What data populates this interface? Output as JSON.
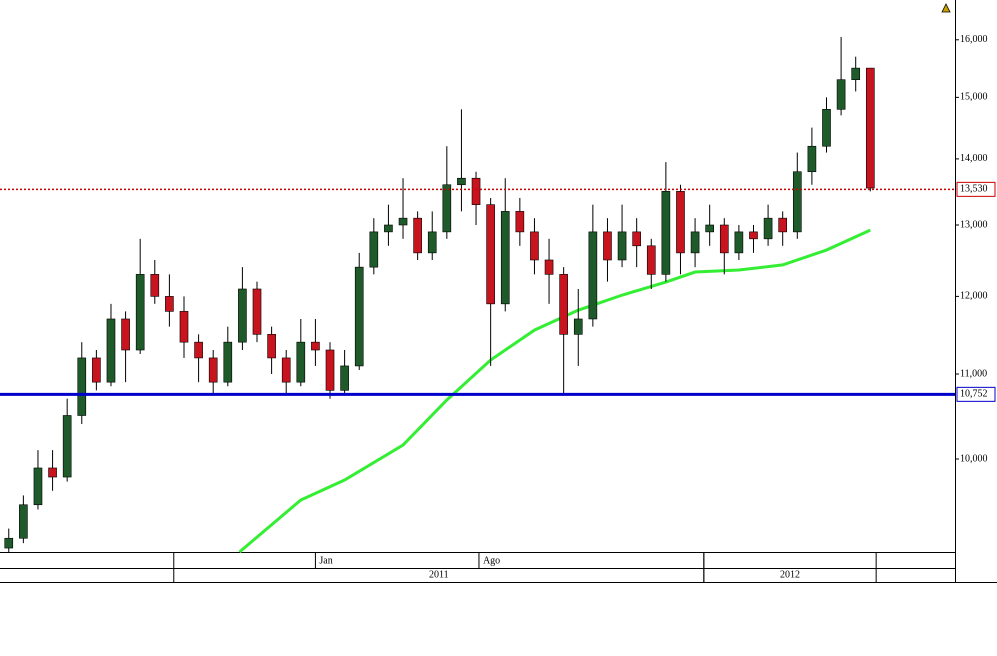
{
  "chart_data": {
    "type": "candlestick",
    "log_scale": true,
    "up_color": "#1f5a2a",
    "down_color": "#c8141e",
    "open": [
      9050,
      9150,
      9500,
      9900,
      9800,
      10500,
      11200,
      10900,
      11700,
      11300,
      12300,
      12000,
      11800,
      11400,
      11200,
      10900,
      11400,
      12100,
      11500,
      11200,
      10900,
      11400,
      11300,
      10800,
      11100,
      12400,
      12900,
      13000,
      13100,
      12600,
      12900,
      13600,
      13700,
      13300,
      11900,
      13200,
      12900,
      12500,
      12300,
      11500,
      11700,
      12900,
      12500,
      12900,
      12700,
      12300,
      13500,
      12600,
      12900,
      13000,
      12600,
      12900,
      12800,
      13100,
      12900,
      13800,
      14200,
      14800,
      15300,
      15500
    ],
    "high": [
      9250,
      9600,
      10100,
      10100,
      10700,
      11400,
      11300,
      11900,
      11800,
      12800,
      12500,
      12300,
      12000,
      11500,
      11300,
      11600,
      12400,
      12200,
      11600,
      11300,
      11700,
      11700,
      11400,
      11300,
      12600,
      13100,
      13300,
      13700,
      13200,
      13200,
      14200,
      14800,
      13800,
      13400,
      13700,
      13400,
      13100,
      12800,
      12400,
      12100,
      13300,
      13100,
      13300,
      13100,
      12800,
      13950,
      13600,
      13100,
      13300,
      13100,
      13000,
      13000,
      13300,
      13200,
      14100,
      14500,
      15000,
      16050,
      15700,
      15500
    ],
    "low": [
      9000,
      9100,
      9450,
      9650,
      9750,
      10400,
      10800,
      10850,
      10900,
      11250,
      11900,
      11600,
      11200,
      10900,
      10750,
      10850,
      11300,
      11400,
      11000,
      10750,
      10850,
      11100,
      10700,
      10750,
      11050,
      12300,
      12700,
      12800,
      12500,
      12500,
      12800,
      13200,
      13000,
      11100,
      11800,
      12700,
      12300,
      11900,
      10750,
      11100,
      11600,
      12200,
      12400,
      12400,
      12100,
      12200,
      12300,
      12400,
      12700,
      12300,
      12500,
      12600,
      12700,
      12700,
      12800,
      13600,
      14100,
      14700,
      15100,
      13500
    ],
    "close": [
      9150,
      9500,
      9900,
      9800,
      10500,
      11200,
      10900,
      11700,
      11300,
      12300,
      12000,
      11800,
      11400,
      11200,
      10900,
      11400,
      12100,
      11500,
      11200,
      10900,
      11400,
      11300,
      10800,
      11100,
      12400,
      12900,
      13000,
      13100,
      12600,
      12900,
      13600,
      13700,
      13300,
      11900,
      13200,
      12900,
      12500,
      12300,
      11500,
      11700,
      12900,
      12500,
      12900,
      12700,
      12300,
      13500,
      12600,
      12900,
      13000,
      12600,
      12900,
      12800,
      13100,
      12900,
      13800,
      14200,
      14800,
      15300,
      15500,
      13550
    ],
    "xlim": [
      -0.6,
      64.8
    ],
    "ylim": [
      9010,
      16730
    ],
    "yticks": [
      {
        "value": 10000,
        "label": "10,000"
      },
      {
        "value": 11000,
        "label": "11,000"
      },
      {
        "value": 12000,
        "label": "12,000"
      },
      {
        "value": 13000,
        "label": "13,000"
      },
      {
        "value": 14000,
        "label": "14,000"
      },
      {
        "value": 15000,
        "label": "15,000"
      },
      {
        "value": 16000,
        "label": "16,000"
      }
    ],
    "xticks": [
      {
        "value": 21,
        "label": "Jan"
      },
      {
        "value": 32.2,
        "label": "Ago"
      }
    ],
    "periods": [
      {
        "label": "2011",
        "start": 11.3,
        "end": 47.6
      },
      {
        "label": "2012",
        "start": 47.6,
        "end": 59.4
      }
    ],
    "moving_average": {
      "color": "#33ee33",
      "x": [
        15.8,
        20,
        23,
        27,
        30,
        33,
        36,
        39,
        42,
        45,
        47,
        50,
        53,
        56,
        59
      ],
      "values": [
        9010,
        9551,
        9767,
        10158,
        10684,
        11174,
        11555,
        11816,
        12017,
        12195,
        12332,
        12360,
        12431,
        12640,
        12925
      ]
    },
    "levels": [
      {
        "value": 13530,
        "label": "13,530",
        "color": "#cc0000",
        "label_color": "#0000cc",
        "style": "dotted"
      },
      {
        "value": 10752,
        "label": "10,752",
        "color": "#0000cc",
        "label_color": "#cc0000",
        "style": "solid"
      }
    ]
  }
}
